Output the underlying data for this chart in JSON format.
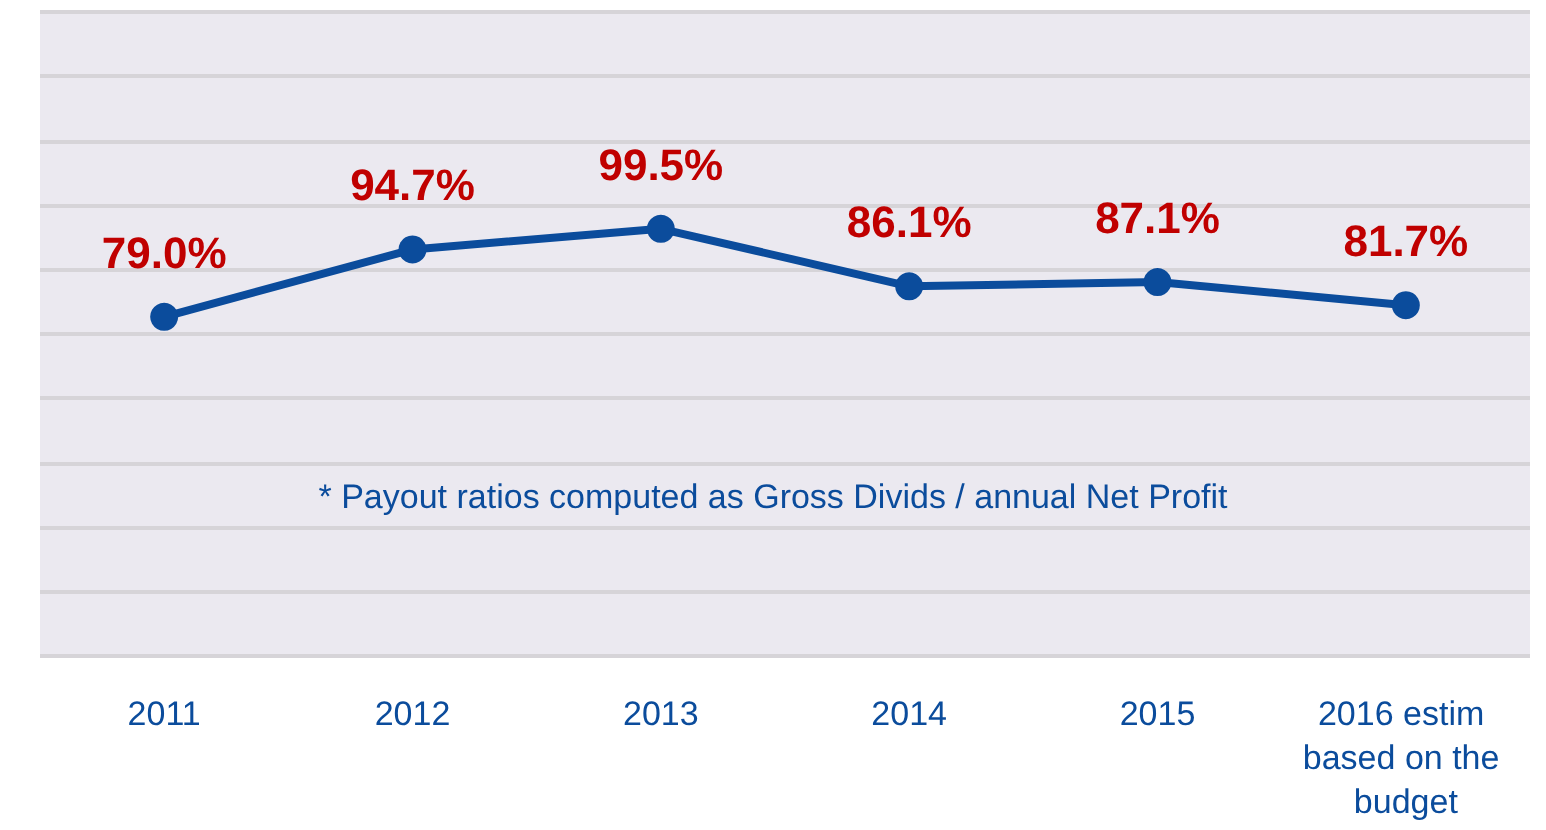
{
  "chart_data": {
    "type": "line",
    "categories": [
      "2011",
      "2012",
      "2013",
      "2014",
      "2015",
      "2016 estim based on the budget"
    ],
    "series": [
      {
        "color": "#0b4c9c",
        "values": [
          79.0,
          94.7,
          99.5,
          86.1,
          87.1,
          81.7
        ],
        "value_labels": [
          "79.0%",
          "94.7%",
          "99.5%",
          "86.1%",
          "87.1%",
          "81.7%"
        ]
      }
    ],
    "ylim": [
      0,
      150
    ],
    "yticks": [
      {
        "value": 0,
        "label": null
      },
      {
        "value": 15,
        "label": null
      },
      {
        "value": 30,
        "label": null
      },
      {
        "value": 45,
        "label": null
      },
      {
        "value": 60,
        "label": null
      },
      {
        "value": 75,
        "label": null
      },
      {
        "value": 90,
        "label": null
      },
      {
        "value": 105,
        "label": null
      },
      {
        "value": 120,
        "label": null
      },
      {
        "value": 135,
        "label": null
      },
      {
        "value": 150,
        "label": null
      }
    ],
    "tick_labels": "x",
    "grid": "y",
    "marker": "circle",
    "line_style": "solid",
    "annotations": [
      "* Payout ratios computed as Gross Divids / annual Net Profit"
    ]
  }
}
